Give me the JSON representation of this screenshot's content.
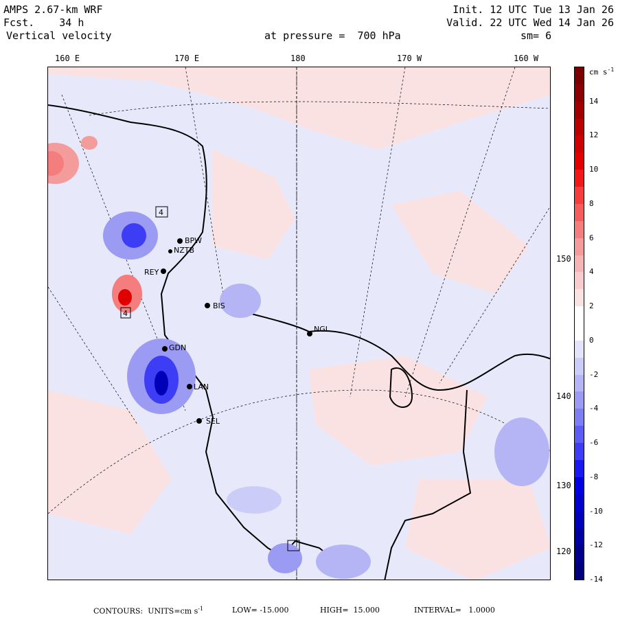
{
  "header": {
    "model": "AMPS 2.67-km WRF",
    "forecast": "Fcst.    34 h",
    "field": "Vertical velocity",
    "level": "at pressure =  700 hPa",
    "init": "Init. 12 UTC Tue 13 Jan 26",
    "valid": "Valid. 22 UTC Wed 14 Jan 26",
    "smoothing": "sm= 6"
  },
  "top_longitudes": [
    "160 E",
    "170 E",
    "180",
    "170 W",
    "160 W"
  ],
  "right_longitudes": [
    "150 W",
    "140 W",
    "130 W",
    "120 W"
  ],
  "stations": [
    {
      "id": "BPW",
      "label": "BPW"
    },
    {
      "id": "NZTB",
      "label": "NZTB"
    },
    {
      "id": "REY",
      "label": "REY"
    },
    {
      "id": "BIS",
      "label": "BIS"
    },
    {
      "id": "NGL",
      "label": "NGL"
    },
    {
      "id": "GDN",
      "label": "GDN"
    },
    {
      "id": "LAN",
      "label": "LAN"
    },
    {
      "id": "SEL",
      "label": "SEL"
    }
  ],
  "box_markers": [
    "4",
    "4"
  ],
  "colorbar": {
    "unit": "cm s",
    "unit_exp": "-1",
    "labels": [
      "14",
      "12",
      "10",
      "8",
      "6",
      "4",
      "2",
      "0",
      "-2",
      "-4",
      "-6",
      "-8",
      "-10",
      "-12",
      "-14"
    ],
    "colors": [
      "#7a0000",
      "#8b0000",
      "#a10000",
      "#b80000",
      "#cc0000",
      "#e00000",
      "#f01818",
      "#f53d3d",
      "#f55d5d",
      "#f47d7d",
      "#f49b9b",
      "#f5b5b5",
      "#f8cccc",
      "#fbe2e2",
      "#ffffff",
      "#ffffff",
      "#e3e3fb",
      "#ccccf8",
      "#b5b5f5",
      "#9b9bf4",
      "#7d7df4",
      "#5d5df5",
      "#3d3df5",
      "#1818f0",
      "#0000e0",
      "#0000cc",
      "#0000b8",
      "#0000a1",
      "#00008b",
      "#00007a"
    ]
  },
  "footer": {
    "contours": "CONTOURS:  UNITS=cm s",
    "units_exp": "-1",
    "low": "LOW= -15.000",
    "high": "HIGH=  15.000",
    "interval": "INTERVAL=   1.0000"
  }
}
